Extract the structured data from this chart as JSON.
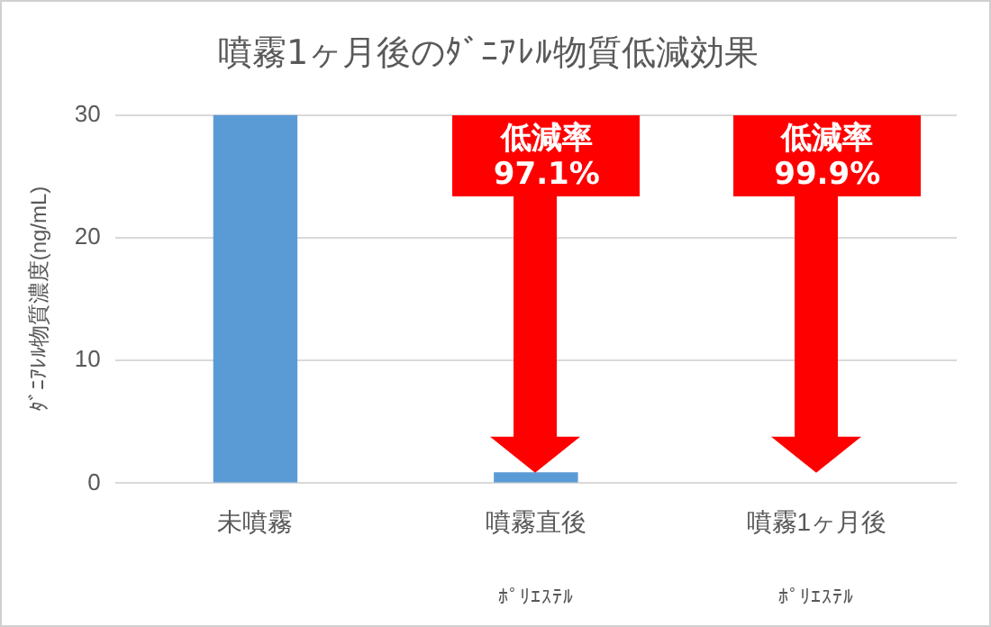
{
  "chart_data": {
    "type": "bar",
    "title": "噴霧1ヶ月後のﾀﾞﾆｱﾚﾙ物質低減効果",
    "ylabel": "ﾀﾞﾆｱﾚﾙ物質濃度(ng/mL)",
    "categories": [
      "未噴霧",
      "噴霧直後",
      "噴霧1ヶ月後"
    ],
    "values": [
      30,
      0.9,
      0
    ],
    "color": "#5b9bd5",
    "ylim": [
      0,
      30
    ],
    "yticks": [
      0,
      10,
      20,
      30
    ],
    "grid": "y",
    "legend": false,
    "annotations": [
      "低減率\n97.1%",
      "低減率\n99.9%",
      "ﾎﾟﾘｴｽﾃﾙ",
      "ﾎﾟﾘｴｽﾃﾙ"
    ]
  }
}
